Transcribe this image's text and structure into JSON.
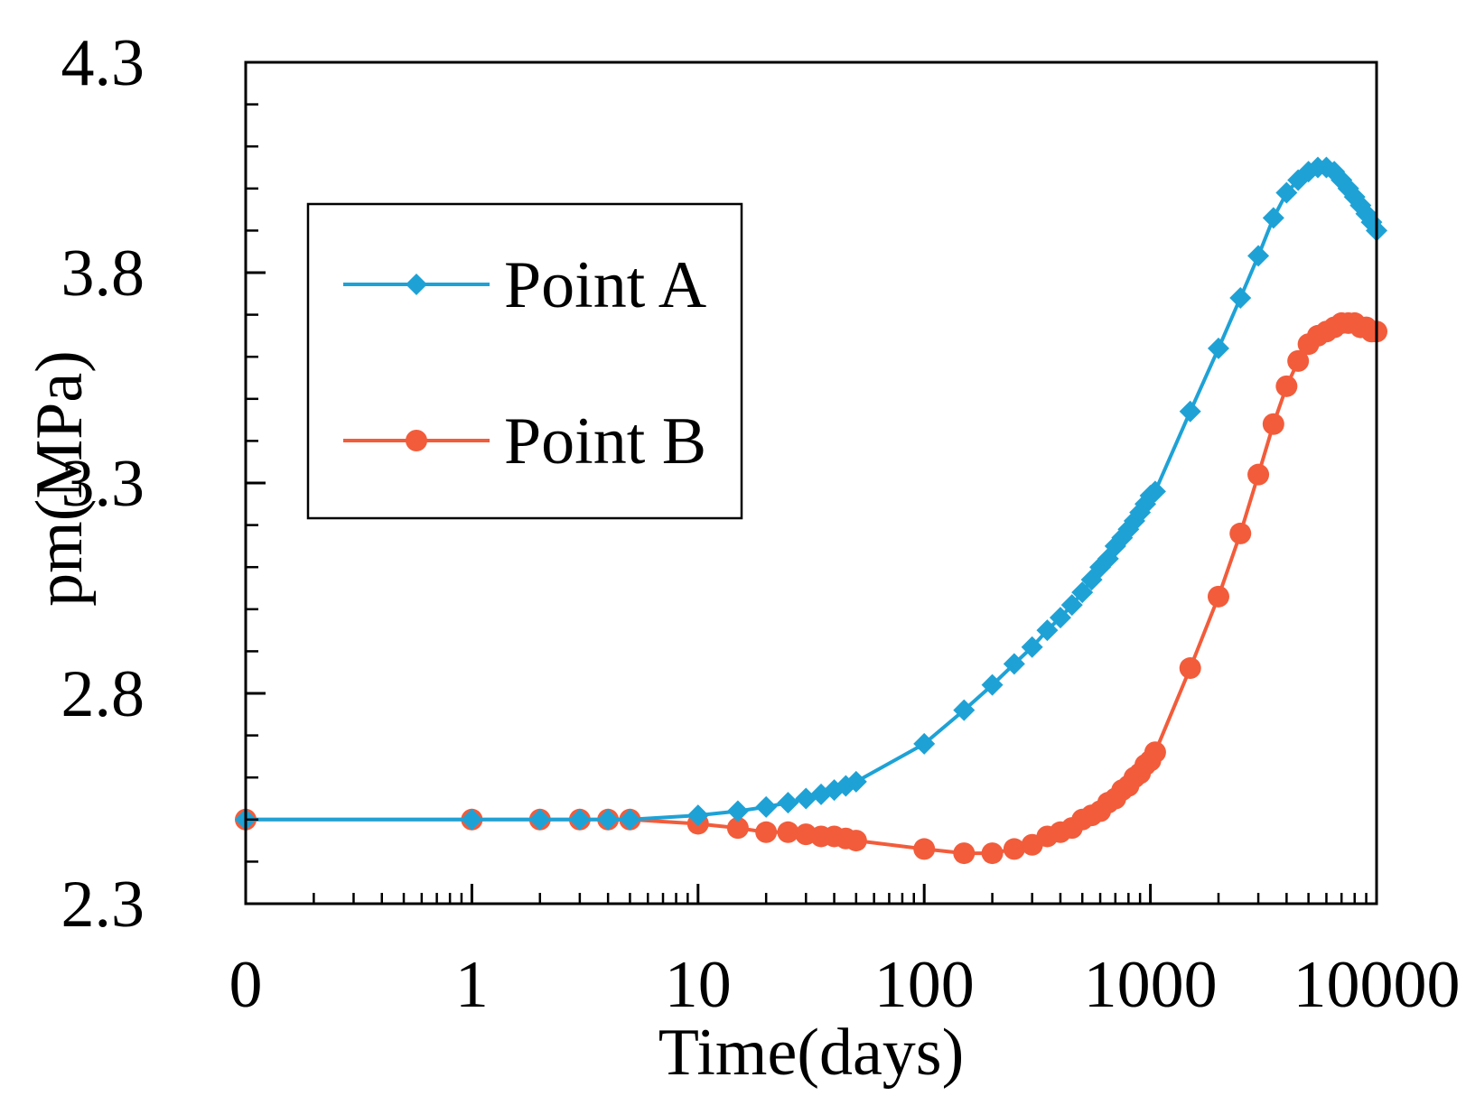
{
  "chart_data": {
    "type": "line",
    "title": "",
    "xlabel": "Time(days)",
    "ylabel": "pm(MPa)",
    "x_scale": "log",
    "xlim": [
      0.1,
      10000
    ],
    "ylim": [
      2.3,
      4.3
    ],
    "x_tick_values": [
      0.1,
      1,
      10,
      100,
      1000,
      10000
    ],
    "x_tick_labels": [
      "0",
      "1",
      "10",
      "100",
      "1000",
      "10000"
    ],
    "y_tick_values": [
      2.3,
      2.8,
      3.3,
      3.8,
      4.3
    ],
    "y_tick_labels": [
      "2.3",
      "2.8",
      "3.3",
      "3.8",
      "4.3"
    ],
    "y_minor_step": 0.1,
    "legend_position": "upper-left",
    "series": [
      {
        "name": "Point A",
        "color": "#1ea2d6",
        "marker": "diamond",
        "points": [
          [
            0.1,
            2.5
          ],
          [
            1,
            2.5
          ],
          [
            2,
            2.5
          ],
          [
            3,
            2.5
          ],
          [
            4,
            2.5
          ],
          [
            5,
            2.5
          ],
          [
            10,
            2.51
          ],
          [
            15,
            2.52
          ],
          [
            20,
            2.53
          ],
          [
            25,
            2.54
          ],
          [
            30,
            2.55
          ],
          [
            35,
            2.56
          ],
          [
            40,
            2.57
          ],
          [
            45,
            2.58
          ],
          [
            50,
            2.59
          ],
          [
            100,
            2.68
          ],
          [
            150,
            2.76
          ],
          [
            200,
            2.82
          ],
          [
            250,
            2.87
          ],
          [
            300,
            2.91
          ],
          [
            350,
            2.95
          ],
          [
            400,
            2.98
          ],
          [
            450,
            3.01
          ],
          [
            500,
            3.04
          ],
          [
            550,
            3.07
          ],
          [
            600,
            3.1
          ],
          [
            650,
            3.12
          ],
          [
            700,
            3.15
          ],
          [
            750,
            3.17
          ],
          [
            800,
            3.19
          ],
          [
            850,
            3.21
          ],
          [
            900,
            3.23
          ],
          [
            950,
            3.25
          ],
          [
            1000,
            3.27
          ],
          [
            1050,
            3.28
          ],
          [
            1500,
            3.47
          ],
          [
            2000,
            3.62
          ],
          [
            2500,
            3.74
          ],
          [
            3000,
            3.84
          ],
          [
            3500,
            3.93
          ],
          [
            4000,
            3.99
          ],
          [
            4500,
            4.02
          ],
          [
            5000,
            4.04
          ],
          [
            5500,
            4.05
          ],
          [
            6000,
            4.05
          ],
          [
            6500,
            4.04
          ],
          [
            7000,
            4.02
          ],
          [
            7500,
            4.0
          ],
          [
            8000,
            3.98
          ],
          [
            8500,
            3.96
          ],
          [
            9000,
            3.94
          ],
          [
            9500,
            3.92
          ],
          [
            10000,
            3.9
          ]
        ]
      },
      {
        "name": "Point B",
        "color": "#f25c3b",
        "marker": "circle",
        "points": [
          [
            0.1,
            2.5
          ],
          [
            1,
            2.5
          ],
          [
            2,
            2.5
          ],
          [
            3,
            2.5
          ],
          [
            4,
            2.5
          ],
          [
            5,
            2.5
          ],
          [
            10,
            2.49
          ],
          [
            15,
            2.48
          ],
          [
            20,
            2.47
          ],
          [
            25,
            2.47
          ],
          [
            30,
            2.465
          ],
          [
            35,
            2.46
          ],
          [
            40,
            2.46
          ],
          [
            45,
            2.455
          ],
          [
            50,
            2.45
          ],
          [
            100,
            2.43
          ],
          [
            150,
            2.42
          ],
          [
            200,
            2.42
          ],
          [
            250,
            2.43
          ],
          [
            300,
            2.44
          ],
          [
            350,
            2.46
          ],
          [
            400,
            2.47
          ],
          [
            450,
            2.48
          ],
          [
            500,
            2.5
          ],
          [
            550,
            2.51
          ],
          [
            600,
            2.52
          ],
          [
            650,
            2.54
          ],
          [
            700,
            2.55
          ],
          [
            750,
            2.57
          ],
          [
            800,
            2.58
          ],
          [
            850,
            2.6
          ],
          [
            900,
            2.61
          ],
          [
            950,
            2.63
          ],
          [
            1000,
            2.64
          ],
          [
            1050,
            2.66
          ],
          [
            1500,
            2.86
          ],
          [
            2000,
            3.03
          ],
          [
            2500,
            3.18
          ],
          [
            3000,
            3.32
          ],
          [
            3500,
            3.44
          ],
          [
            4000,
            3.53
          ],
          [
            4500,
            3.59
          ],
          [
            5000,
            3.63
          ],
          [
            5500,
            3.65
          ],
          [
            6000,
            3.66
          ],
          [
            6500,
            3.67
          ],
          [
            7000,
            3.68
          ],
          [
            7500,
            3.68
          ],
          [
            8000,
            3.68
          ],
          [
            8500,
            3.67
          ],
          [
            9000,
            3.67
          ],
          [
            9500,
            3.66
          ],
          [
            10000,
            3.66
          ]
        ]
      }
    ]
  }
}
